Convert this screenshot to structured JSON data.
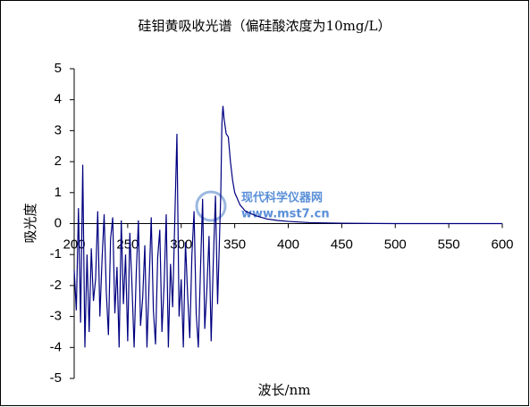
{
  "chart_data": {
    "type": "line",
    "title": "硅钼黄吸收光谱（偏硅酸浓度为10mg/L）",
    "xlabel": "波长/nm",
    "ylabel": "吸光度",
    "watermark": [
      "现代科学仪器网",
      "www.mst7.cn"
    ],
    "x": [
      200,
      202,
      204,
      206,
      208,
      210,
      212,
      214,
      216,
      218,
      220,
      222,
      224,
      226,
      228,
      230,
      232,
      234,
      236,
      238,
      240,
      242,
      244,
      246,
      248,
      250,
      252,
      254,
      256,
      258,
      260,
      262,
      264,
      266,
      268,
      270,
      272,
      274,
      276,
      278,
      280,
      282,
      284,
      286,
      288,
      290,
      292,
      294,
      296,
      298,
      300,
      302,
      304,
      306,
      308,
      310,
      312,
      314,
      316,
      318,
      320,
      322,
      324,
      326,
      328,
      330,
      332,
      334,
      336,
      337,
      338,
      339,
      340,
      342,
      344,
      346,
      348,
      350,
      355,
      360,
      370,
      380,
      390,
      400,
      420,
      450,
      500,
      550,
      600
    ],
    "series": [
      {
        "name": "吸光度",
        "color": "#000080",
        "values": [
          -1.5,
          -2.8,
          0.5,
          -3.2,
          1.9,
          -4.0,
          -1.0,
          -3.5,
          -0.8,
          -2.5,
          -1.8,
          0.4,
          -3.0,
          -1.2,
          0.3,
          -2.2,
          -3.6,
          -0.5,
          0.2,
          -2.9,
          -1.4,
          -4.0,
          0.1,
          -2.6,
          -1.0,
          -3.8,
          -0.3,
          -2.0,
          -4.0,
          -1.6,
          0.1,
          -3.3,
          -2.4,
          -0.7,
          -4.0,
          -1.9,
          0.2,
          -2.8,
          -3.9,
          -1.1,
          -0.2,
          -3.5,
          -2.0,
          0.3,
          -4.0,
          -1.3,
          -2.7,
          0.1,
          2.9,
          -3.0,
          -1.8,
          -4.0,
          -0.6,
          -2.3,
          -3.7,
          -1.0,
          0.4,
          -2.9,
          -4.0,
          -1.5,
          0.8,
          -3.4,
          -2.1,
          -0.4,
          -3.8,
          -1.2,
          0.9,
          -2.6,
          -0.2,
          1.0,
          3.2,
          3.8,
          3.4,
          2.9,
          2.8,
          2.0,
          1.4,
          1.0,
          0.6,
          0.4,
          0.25,
          0.15,
          0.1,
          0.07,
          0.03,
          0.01,
          0,
          0,
          0
        ]
      }
    ],
    "xlim": [
      200,
      600
    ],
    "xticks": [
      200,
      250,
      300,
      350,
      400,
      450,
      500,
      550,
      600
    ],
    "ylim": [
      -5,
      5
    ],
    "yticks": [
      -5,
      -4,
      -3,
      -2,
      -1,
      0,
      1,
      2,
      3,
      4,
      5
    ]
  }
}
